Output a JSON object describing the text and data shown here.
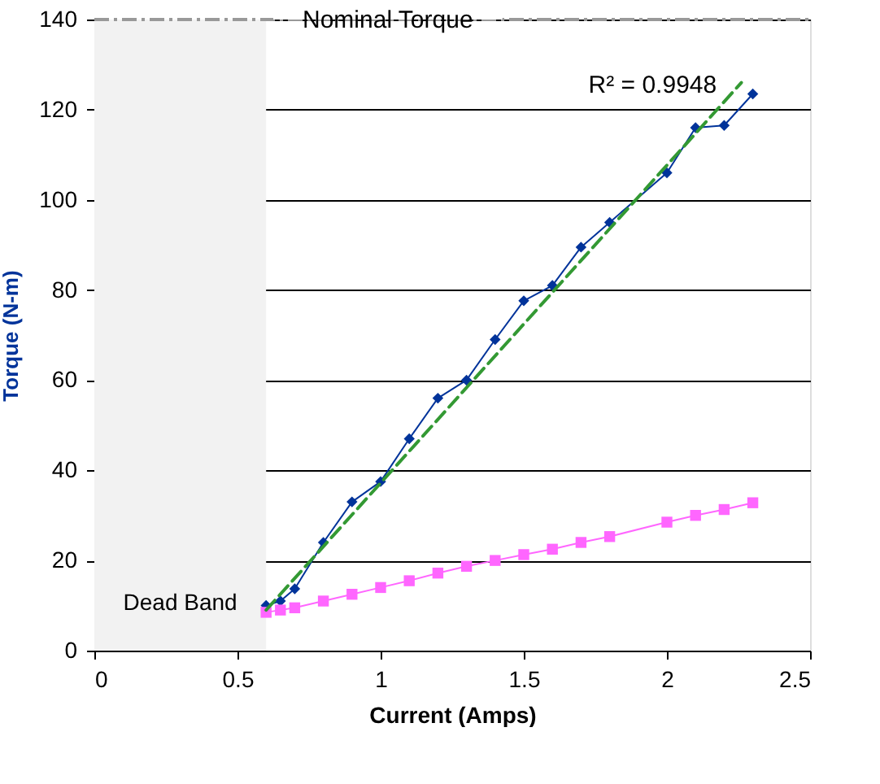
{
  "chart_data": {
    "type": "line",
    "xlabel": "Current (Amps)",
    "ylabel": "Torque (N-m)",
    "xlim": [
      0,
      2.5
    ],
    "xticks": [
      0,
      0.5,
      1,
      1.5,
      2,
      2.5
    ],
    "ylim": [
      0,
      140
    ],
    "yticks": [
      0,
      20,
      40,
      60,
      80,
      100,
      120,
      140
    ],
    "grid": "y",
    "series": [
      {
        "color": "#00339a",
        "marker": "diamond",
        "line_style": "solid",
        "x": [
          0.6,
          0.65,
          0.7,
          0.8,
          0.9,
          1.0,
          1.1,
          1.2,
          1.3,
          1.4,
          1.5,
          1.6,
          1.7,
          1.8,
          2.0,
          2.1,
          2.2,
          2.3
        ],
        "values": [
          10,
          11,
          13.7,
          24,
          33,
          37.5,
          47,
          56,
          60,
          69,
          77.6,
          81,
          89.5,
          95,
          106,
          116,
          116.5,
          123.5
        ]
      },
      {
        "color": "#ff66ff",
        "marker": "square",
        "line_style": "solid",
        "x": [
          0.6,
          0.65,
          0.7,
          0.8,
          0.9,
          1.0,
          1.1,
          1.2,
          1.3,
          1.4,
          1.5,
          1.6,
          1.7,
          1.8,
          2.0,
          2.1,
          2.2,
          2.3
        ],
        "values": [
          8.5,
          9,
          9.5,
          11,
          12.5,
          14,
          15.5,
          17.2,
          18.7,
          20,
          21.3,
          22.5,
          24,
          25.3,
          28.5,
          30,
          31.3,
          32.8
        ]
      },
      {
        "color": "#339933",
        "marker": "none",
        "line_style": "dashed",
        "x": [
          0.6,
          2.26
        ],
        "values": [
          9,
          126
        ]
      }
    ],
    "ref_lines": [
      {
        "axis": "y",
        "value": 140,
        "label": "Nominal Torque",
        "color": "#999999",
        "line_style": "dashed"
      }
    ],
    "bands": [
      {
        "axis": "x",
        "from": 0,
        "to": 0.6,
        "label": "Dead Band",
        "color": "#f2f2f2"
      }
    ],
    "annotations": [
      "R² = 0.9948"
    ]
  }
}
